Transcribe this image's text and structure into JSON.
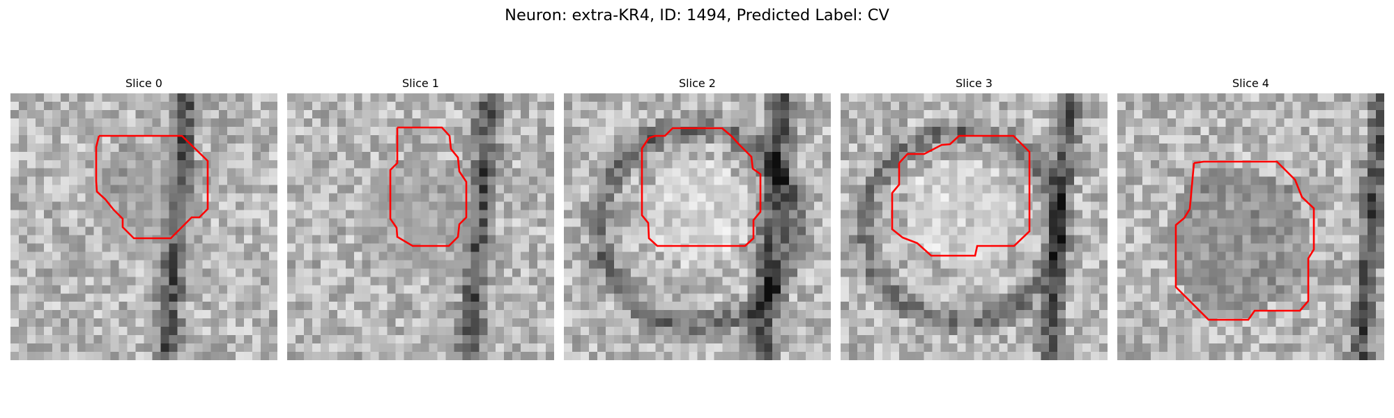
{
  "figure": {
    "title": "Neuron: extra-KR4, ID: 1494, Predicted Label: CV"
  },
  "panels": [
    {
      "title": "Slice 0"
    },
    {
      "title": "Slice 1"
    },
    {
      "title": "Slice 2"
    },
    {
      "title": "Slice 3"
    },
    {
      "title": "Slice 4"
    }
  ],
  "style": {
    "contour_color": "#ff0000",
    "colormap": "gray"
  }
}
